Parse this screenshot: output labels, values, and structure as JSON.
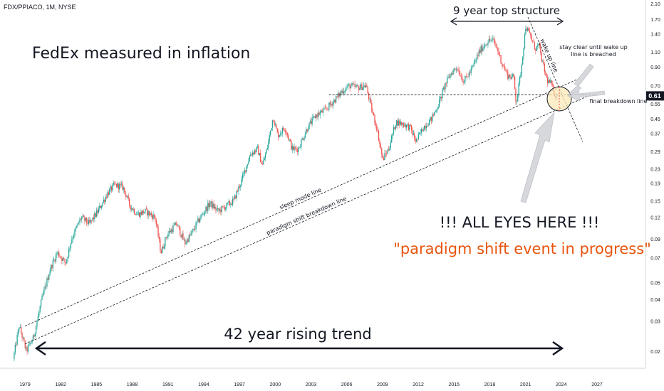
{
  "chart_data": {
    "type": "candlestick",
    "symbol_header": "FDX/PPIACO, 1M, NYSE",
    "y_scale": "log",
    "ylim": [
      0.016,
      2.1
    ],
    "xlim": [
      1978.0,
      2030.5
    ],
    "y_ticks": [
      "2.10",
      "1.70",
      "1.40",
      "1.10",
      "0.90",
      "0.70",
      "0.55",
      "0.45",
      "0.37",
      "0.29",
      "0.23",
      "0.19",
      "0.15",
      "0.12",
      "0.09",
      "0.07",
      "0.05",
      "0.04",
      "0.03",
      "0.02"
    ],
    "x_ticks": [
      "1979",
      "1982",
      "1985",
      "1988",
      "1991",
      "1994",
      "1997",
      "2000",
      "2003",
      "2006",
      "2009",
      "2012",
      "2015",
      "2018",
      "2021",
      "2024",
      "2027"
    ],
    "last_price_label": "0.61",
    "last_price": 0.61,
    "colors": {
      "up": "#26a69a",
      "down": "#ef5350",
      "text": "#131722",
      "accent": "#e8550f",
      "highlight_fill": "#fbe9b7"
    },
    "price_path": [
      [
        1978.1,
        0.018
      ],
      [
        1978.6,
        0.028
      ],
      [
        1979.2,
        0.02
      ],
      [
        1979.8,
        0.024
      ],
      [
        1980.5,
        0.04
      ],
      [
        1981.2,
        0.06
      ],
      [
        1981.8,
        0.075
      ],
      [
        1982.5,
        0.065
      ],
      [
        1983.0,
        0.09
      ],
      [
        1983.8,
        0.12
      ],
      [
        1984.5,
        0.11
      ],
      [
        1985.2,
        0.13
      ],
      [
        1986.0,
        0.165
      ],
      [
        1986.6,
        0.185
      ],
      [
        1987.3,
        0.18
      ],
      [
        1987.9,
        0.14
      ],
      [
        1988.5,
        0.125
      ],
      [
        1989.2,
        0.13
      ],
      [
        1990.0,
        0.12
      ],
      [
        1990.5,
        0.075
      ],
      [
        1991.0,
        0.095
      ],
      [
        1991.8,
        0.11
      ],
      [
        1992.5,
        0.085
      ],
      [
        1993.0,
        0.095
      ],
      [
        1993.8,
        0.12
      ],
      [
        1994.6,
        0.145
      ],
      [
        1995.3,
        0.13
      ],
      [
        1996.0,
        0.14
      ],
      [
        1996.6,
        0.15
      ],
      [
        1997.3,
        0.2
      ],
      [
        1998.0,
        0.28
      ],
      [
        1998.6,
        0.3
      ],
      [
        1999.0,
        0.24
      ],
      [
        1999.4,
        0.3
      ],
      [
        1999.9,
        0.46
      ],
      [
        2000.3,
        0.36
      ],
      [
        2000.9,
        0.4
      ],
      [
        2001.5,
        0.3
      ],
      [
        2002.0,
        0.3
      ],
      [
        2002.8,
        0.4
      ],
      [
        2003.5,
        0.47
      ],
      [
        2004.2,
        0.5
      ],
      [
        2005.0,
        0.57
      ],
      [
        2005.7,
        0.65
      ],
      [
        2006.3,
        0.7
      ],
      [
        2007.0,
        0.68
      ],
      [
        2007.7,
        0.7
      ],
      [
        2008.2,
        0.5
      ],
      [
        2008.6,
        0.4
      ],
      [
        2009.1,
        0.26
      ],
      [
        2009.6,
        0.3
      ],
      [
        2010.2,
        0.43
      ],
      [
        2010.8,
        0.42
      ],
      [
        2011.4,
        0.4
      ],
      [
        2011.9,
        0.33
      ],
      [
        2012.5,
        0.4
      ],
      [
        2013.2,
        0.45
      ],
      [
        2013.8,
        0.55
      ],
      [
        2014.3,
        0.7
      ],
      [
        2014.8,
        0.82
      ],
      [
        2015.3,
        0.9
      ],
      [
        2015.9,
        0.74
      ],
      [
        2016.5,
        0.85
      ],
      [
        2017.2,
        1.1
      ],
      [
        2017.8,
        1.25
      ],
      [
        2018.3,
        1.3
      ],
      [
        2018.7,
        1.15
      ],
      [
        2019.1,
        0.95
      ],
      [
        2019.6,
        0.8
      ],
      [
        2020.1,
        0.78
      ],
      [
        2020.3,
        0.55
      ],
      [
        2020.7,
        0.85
      ],
      [
        2021.1,
        1.55
      ],
      [
        2021.5,
        1.35
      ],
      [
        2021.9,
        1.15
      ],
      [
        2022.2,
        1.2
      ],
      [
        2022.5,
        0.95
      ],
      [
        2022.9,
        0.75
      ],
      [
        2023.2,
        0.72
      ],
      [
        2023.6,
        0.61
      ]
    ],
    "lines": [
      {
        "name": "sleep mode line",
        "style": "dashed",
        "p1": [
          1979.0,
          0.028
        ],
        "p2": [
          2025.5,
          0.77
        ]
      },
      {
        "name": "paradigm shift breakdown line",
        "style": "dashed",
        "p1": [
          1979.0,
          0.022
        ],
        "p2": [
          2026.5,
          0.62
        ]
      },
      {
        "name": "final breakdown line",
        "style": "dashed",
        "p1": [
          2004.5,
          0.62
        ],
        "p2": [
          2027.0,
          0.62
        ]
      },
      {
        "name": "wake up line",
        "style": "dashed",
        "p1": [
          2021.2,
          1.75
        ],
        "p2": [
          2025.8,
          0.33
        ]
      }
    ]
  },
  "annotations": {
    "title": "FedEx measured in inflation",
    "top_structure": "9 year top structure",
    "rising_trend": "42 year rising trend",
    "all_eyes": "!!! ALL EYES HERE !!!",
    "paradigm": "\"paradigm shift event in progress\"",
    "stay_clear_line1": "stay clear until wake up",
    "stay_clear_line2": "line is breached",
    "wake_up_line": "wake up line",
    "sleep_mode_line": "sleep mode line",
    "paradigm_breakdown_line": "paradigm shift breakdown line",
    "final_breakdown_line": "final breakdown line"
  }
}
